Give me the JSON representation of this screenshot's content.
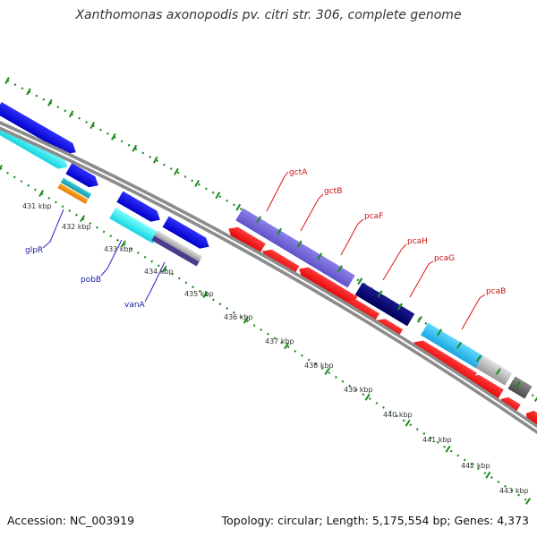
{
  "title": "Xanthomonas axonopodis pv. citri str. 306, complete genome",
  "footer": {
    "accession": "Accession: NC_003919",
    "summary": "Topology: circular; Length: 5,175,554 bp; Genes: 4,373"
  },
  "colors": {
    "backbone": "#8c8c8c",
    "tick": "#1e8a1e",
    "tick_label": "#333333",
    "forward_gene": "#1a1aee",
    "reverse_gene": "#ee1a1a",
    "gene_label_forward": "#1a1aaa",
    "gene_label_reverse": "#cc1111",
    "callout_forward": "#2222cc",
    "callout_reverse": "#dd1111"
  },
  "ticks": [
    "431 kbp",
    "432 kbp",
    "433 kbp",
    "434 kbp",
    "435 kbp",
    "436 kbp",
    "437 kbp",
    "438 kbp",
    "439 kbp",
    "440 kbp",
    "441 kbp",
    "442 kbp",
    "443 kbp"
  ],
  "gene_labels": {
    "forward": [
      "glpR",
      "pobB",
      "vanA"
    ],
    "reverse": [
      "gctA",
      "gctB",
      "pcaF",
      "pcaH",
      "pcaG",
      "pcaB"
    ]
  }
}
